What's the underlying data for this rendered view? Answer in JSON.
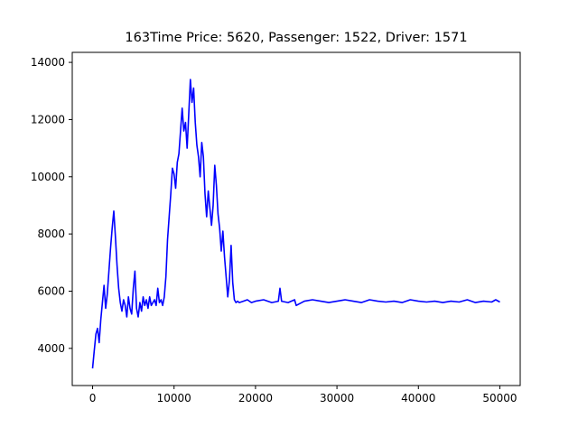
{
  "chart_data": {
    "type": "line",
    "title": "163Time Price: 5620, Passenger: 1522, Driver: 1571",
    "xlabel": "",
    "ylabel": "",
    "xlim": [
      -2500,
      52500
    ],
    "ylim": [
      2700,
      14350
    ],
    "x_ticks": [
      0,
      10000,
      20000,
      30000,
      40000,
      50000
    ],
    "x_tick_labels": [
      "0",
      "10000",
      "20000",
      "30000",
      "40000",
      "50000"
    ],
    "y_ticks": [
      4000,
      6000,
      8000,
      10000,
      12000,
      14000
    ],
    "y_tick_labels": [
      "4000",
      "6000",
      "8000",
      "10000",
      "12000",
      "14000"
    ],
    "grid": false,
    "series": [
      {
        "color": "#0000ff",
        "x": [
          0,
          200,
          400,
          600,
          800,
          1000,
          1200,
          1400,
          1600,
          1800,
          2000,
          2200,
          2400,
          2600,
          2800,
          3000,
          3200,
          3400,
          3600,
          3800,
          4000,
          4200,
          4400,
          4600,
          4800,
          5000,
          5200,
          5400,
          5600,
          5800,
          6000,
          6200,
          6400,
          6600,
          6800,
          7000,
          7200,
          7400,
          7600,
          7800,
          8000,
          8200,
          8400,
          8600,
          8800,
          9000,
          9200,
          9400,
          9600,
          9800,
          10000,
          10200,
          10400,
          10600,
          10800,
          11000,
          11200,
          11400,
          11600,
          11800,
          12000,
          12200,
          12400,
          12600,
          12800,
          13000,
          13200,
          13400,
          13600,
          13800,
          14000,
          14200,
          14400,
          14600,
          14800,
          15000,
          15200,
          15400,
          15600,
          15800,
          16000,
          16200,
          16400,
          16600,
          16800,
          17000,
          17200,
          17400,
          17600,
          17800,
          18000,
          18500,
          19000,
          19500,
          20000,
          21000,
          22000,
          22800,
          23000,
          23200,
          24000,
          24800,
          25000,
          26000,
          27000,
          28000,
          29000,
          30000,
          31000,
          32000,
          33000,
          34000,
          35000,
          36000,
          37000,
          38000,
          39000,
          40000,
          41000,
          42000,
          43000,
          44000,
          45000,
          46000,
          47000,
          48000,
          49000,
          49500,
          50000
        ],
        "y": [
          3300,
          3900,
          4500,
          4700,
          4200,
          5000,
          5600,
          6200,
          5400,
          5900,
          6700,
          7500,
          8200,
          8800,
          7900,
          6900,
          6100,
          5600,
          5300,
          5700,
          5500,
          5100,
          5800,
          5400,
          5200,
          6100,
          6700,
          5400,
          5100,
          5600,
          5300,
          5800,
          5500,
          5700,
          5400,
          5800,
          5500,
          5600,
          5700,
          5500,
          6100,
          5600,
          5700,
          5500,
          5800,
          6500,
          7800,
          8600,
          9400,
          10300,
          10100,
          9600,
          10500,
          10800,
          11600,
          12400,
          11600,
          11900,
          11000,
          12200,
          13400,
          12600,
          13100,
          11900,
          11100,
          10700,
          10000,
          11200,
          10700,
          9400,
          8600,
          9500,
          8900,
          8300,
          9000,
          10400,
          9700,
          8700,
          8200,
          7400,
          8100,
          7200,
          6500,
          5800,
          6400,
          7600,
          6300,
          5700,
          5600,
          5650,
          5600,
          5650,
          5700,
          5600,
          5650,
          5700,
          5600,
          5650,
          6100,
          5650,
          5600,
          5700,
          5500,
          5650,
          5700,
          5650,
          5600,
          5650,
          5700,
          5650,
          5600,
          5700,
          5650,
          5620,
          5650,
          5600,
          5700,
          5650,
          5620,
          5650,
          5600,
          5650,
          5620,
          5700,
          5600,
          5650,
          5620,
          5700,
          5620
        ]
      }
    ]
  }
}
